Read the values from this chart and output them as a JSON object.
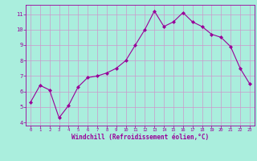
{
  "x": [
    0,
    1,
    2,
    3,
    4,
    5,
    6,
    7,
    8,
    9,
    10,
    11,
    12,
    13,
    14,
    15,
    16,
    17,
    18,
    19,
    20,
    21,
    22,
    23
  ],
  "y": [
    5.3,
    6.4,
    6.1,
    4.3,
    5.1,
    6.3,
    6.9,
    7.0,
    7.2,
    7.5,
    8.0,
    9.0,
    10.0,
    11.2,
    10.2,
    10.5,
    11.1,
    10.5,
    10.2,
    9.7,
    9.5,
    8.9,
    7.5,
    6.5
  ],
  "line_color": "#990099",
  "marker": "D",
  "marker_size": 2.0,
  "bg_color": "#aaeedd",
  "grid_color": "#cc99cc",
  "axis_label_color": "#990099",
  "tick_color": "#990099",
  "xlabel": "Windchill (Refroidissement éolien,°C)",
  "ylim": [
    3.8,
    11.6
  ],
  "xlim": [
    -0.5,
    23.5
  ],
  "yticks": [
    4,
    5,
    6,
    7,
    8,
    9,
    10,
    11
  ],
  "xticks": [
    0,
    1,
    2,
    3,
    4,
    5,
    6,
    7,
    8,
    9,
    10,
    11,
    12,
    13,
    14,
    15,
    16,
    17,
    18,
    19,
    20,
    21,
    22,
    23
  ]
}
